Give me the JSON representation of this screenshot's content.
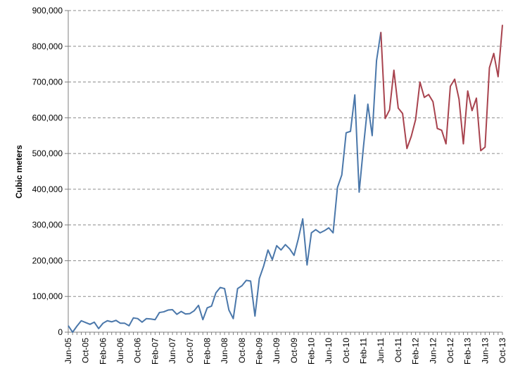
{
  "chart_data": {
    "type": "line",
    "title": "",
    "xlabel": "",
    "ylabel": "Cubic meters",
    "ylim": [
      0,
      900000
    ],
    "y_ticks": [
      0,
      100000,
      200000,
      300000,
      400000,
      500000,
      600000,
      700000,
      800000,
      900000
    ],
    "y_tick_labels": [
      "0",
      "100,000",
      "200,000",
      "300,000",
      "400,000",
      "500,000",
      "600,000",
      "700,000",
      "800,000",
      "900,000"
    ],
    "x_tick_labels": [
      "Jun-05",
      "Oct-05",
      "Feb-06",
      "Jun-06",
      "Oct-06",
      "Feb-07",
      "Jun-07",
      "Oct-07",
      "Feb-08",
      "Jun-08",
      "Oct-08",
      "Feb-09",
      "Jun-09",
      "Oct-09",
      "Feb-10",
      "Jun-10",
      "Oct-10",
      "Feb-11",
      "Jun-11",
      "Oct-11",
      "Feb-12",
      "Jun-12",
      "Oct-12",
      "Feb-13",
      "Jun-13",
      "Oct-13"
    ],
    "x_start": "Jun-05",
    "x_end": "Oct-13",
    "grid": true,
    "legend": "none",
    "series": [
      {
        "color": "#4a77aa",
        "start": "Jun-05",
        "values": [
          18000,
          0,
          17000,
          32000,
          27000,
          22000,
          28000,
          10000,
          25000,
          32000,
          29000,
          33000,
          25000,
          25000,
          18000,
          40000,
          38000,
          28000,
          38000,
          37000,
          35000,
          55000,
          57000,
          62000,
          63000,
          50000,
          58000,
          51000,
          52000,
          60000,
          75000,
          35000,
          68000,
          73000,
          110000,
          125000,
          122000,
          62000,
          38000,
          122000,
          130000,
          145000,
          143000,
          45000,
          150000,
          185000,
          230000,
          203000,
          242000,
          230000,
          245000,
          233000,
          215000,
          262000,
          317000,
          188000,
          278000,
          287000,
          278000,
          284000,
          292000,
          278000,
          405000,
          440000,
          558000,
          562000,
          664000,
          392000,
          520000,
          638000,
          550000,
          760000,
          840000
        ]
      },
      {
        "color": "#a8434e",
        "start": "Jun-11",
        "values": [
          840000,
          598000,
          622000,
          733000,
          627000,
          612000,
          514000,
          548000,
          595000,
          700000,
          657000,
          665000,
          645000,
          570000,
          565000,
          527000,
          688000,
          708000,
          652000,
          527000,
          675000,
          620000,
          655000,
          508000,
          518000,
          740000,
          780000,
          715000,
          860000
        ]
      }
    ]
  }
}
